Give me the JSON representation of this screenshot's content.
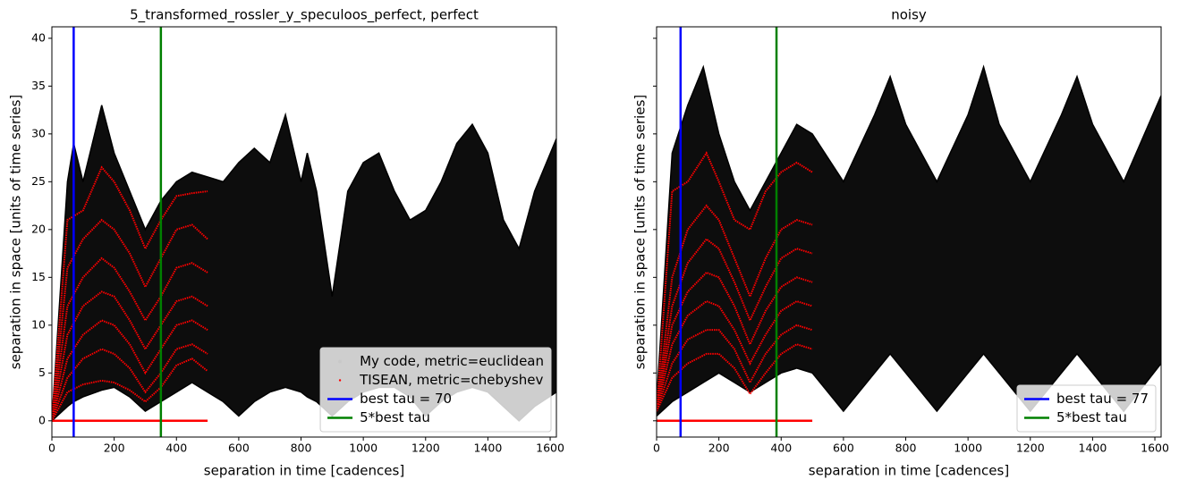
{
  "chart_data": [
    {
      "type": "density",
      "title": "5_transformed_rossler_y_speculoos_perfect, perfect",
      "xlabel": "separation in time [cadences]",
      "ylabel": "separation in space [units of time series]",
      "xlim": [
        0,
        1620
      ],
      "ylim": [
        -1.7,
        41.2
      ],
      "xticks": [
        0,
        200,
        400,
        600,
        800,
        1000,
        1200,
        1400,
        1600
      ],
      "yticks": [
        0,
        5,
        10,
        15,
        20,
        25,
        30,
        35,
        40
      ],
      "yticklabels": true,
      "legend": "lower right",
      "cloud": {
        "name": "My code, metric=euclidean",
        "color": "#000000",
        "x": [
          0,
          50,
          70,
          100,
          160,
          200,
          250,
          300,
          350,
          400,
          450,
          500,
          550,
          600,
          650,
          700,
          750,
          800,
          820,
          850,
          900,
          950,
          1000,
          1050,
          1100,
          1150,
          1200,
          1250,
          1300,
          1350,
          1400,
          1450,
          1500,
          1550,
          1620
        ],
        "upper": [
          0,
          25,
          29,
          25,
          33,
          28,
          24,
          20,
          23,
          25,
          26,
          25.5,
          25,
          27,
          28.5,
          27,
          32,
          25,
          28,
          24,
          13,
          24,
          27,
          28,
          24,
          21,
          22,
          25,
          29,
          31,
          28,
          21,
          18,
          24,
          29.5
        ],
        "lower": [
          0,
          1.5,
          2,
          2.5,
          3.2,
          3.5,
          2.5,
          1,
          2,
          3,
          4,
          3,
          2,
          0.5,
          2,
          3,
          3.5,
          3,
          2.5,
          2,
          0.5,
          2,
          3,
          3.5,
          3.5,
          2.5,
          0.5,
          2,
          3,
          3.5,
          3,
          1.5,
          0,
          1.5,
          3
        ]
      },
      "curves": {
        "name": "TISEAN, metric=chebyshev",
        "color": "#ff0000",
        "x": [
          0,
          50,
          100,
          160,
          200,
          250,
          300,
          350,
          400,
          450,
          500
        ],
        "lines": [
          [
            0,
            21,
            22,
            26.5,
            25,
            22,
            18,
            21,
            23.5,
            23.8,
            24
          ],
          [
            0,
            16,
            19,
            21,
            20,
            17.5,
            14,
            17,
            20,
            20.5,
            19
          ],
          [
            0,
            12,
            15,
            17,
            16,
            13.5,
            10.5,
            13,
            16,
            16.5,
            15.5
          ],
          [
            0,
            9,
            12,
            13.5,
            13,
            10.5,
            7.5,
            10,
            12.5,
            13,
            12
          ],
          [
            0,
            6.5,
            9,
            10.5,
            10,
            8,
            5,
            7.5,
            10,
            10.5,
            9.5
          ],
          [
            0,
            4.5,
            6.5,
            7.5,
            7,
            5.5,
            3,
            5,
            7.5,
            8,
            7
          ],
          [
            0,
            3,
            3.8,
            4.2,
            4,
            3.2,
            2,
            3.5,
            5.8,
            6.5,
            5.2
          ]
        ]
      },
      "vlines": [
        {
          "name": "best tau = 70",
          "color": "#0000ff",
          "x": 70
        },
        {
          "name": "5*best tau",
          "color": "#008000",
          "x": 350
        }
      ],
      "baseline": {
        "color": "#ff0000",
        "x": [
          0,
          500
        ],
        "values": [
          0,
          0
        ]
      }
    },
    {
      "type": "density",
      "title": "noisy",
      "xlabel": "separation in time [cadences]",
      "ylabel": "separation in space [units of time series]",
      "xlim": [
        0,
        1620
      ],
      "ylim": [
        -1.7,
        41.2
      ],
      "xticks": [
        0,
        200,
        400,
        600,
        800,
        1000,
        1200,
        1400,
        1600
      ],
      "yticks": [
        0,
        5,
        10,
        15,
        20,
        25,
        30,
        35,
        40
      ],
      "yticklabels": false,
      "legend": "lower right",
      "cloud": {
        "color": "#000000",
        "x": [
          0,
          50,
          100,
          150,
          200,
          250,
          300,
          350,
          400,
          450,
          500,
          600,
          700,
          750,
          800,
          900,
          1000,
          1050,
          1100,
          1200,
          1300,
          1350,
          1400,
          1500,
          1620
        ],
        "upper": [
          2,
          28,
          33,
          37,
          30,
          25,
          22,
          25,
          28,
          31,
          30,
          25,
          32,
          36,
          31,
          25,
          32,
          37,
          31,
          25,
          32,
          36,
          31,
          25,
          34
        ],
        "lower": [
          0.5,
          2,
          3,
          4,
          5,
          4,
          3,
          4,
          5,
          5.5,
          5,
          1,
          5,
          7,
          5,
          1,
          5,
          7,
          5,
          1,
          5,
          7,
          5,
          1,
          6
        ]
      },
      "curves": {
        "color": "#ff0000",
        "x": [
          0,
          50,
          100,
          160,
          200,
          250,
          300,
          350,
          400,
          450,
          500
        ],
        "lines": [
          [
            1,
            24,
            25,
            28,
            25,
            21,
            20,
            24,
            26,
            27,
            26
          ],
          [
            1,
            15,
            20,
            22.5,
            21,
            17,
            13,
            17,
            20,
            21,
            20.5
          ],
          [
            1,
            12,
            16.5,
            19,
            18,
            14.5,
            10.5,
            14,
            17,
            18,
            17.5
          ],
          [
            1,
            10,
            13.5,
            15.5,
            15,
            12,
            8,
            11.5,
            14,
            15,
            14.5
          ],
          [
            1,
            8,
            11,
            12.5,
            12,
            9.5,
            6,
            9,
            11.5,
            12.5,
            12
          ],
          [
            1,
            6,
            8.5,
            9.5,
            9.5,
            7.5,
            4,
            7,
            9,
            10,
            9.5
          ],
          [
            1,
            4.5,
            6,
            7,
            7,
            5.5,
            2.8,
            5,
            7,
            8,
            7.5
          ]
        ]
      },
      "vlines": [
        {
          "name": "best tau = 77",
          "color": "#0000ff",
          "x": 77
        },
        {
          "name": "5*best tau",
          "color": "#008000",
          "x": 385
        }
      ],
      "baseline": {
        "color": "#ff0000",
        "x": [
          0,
          500
        ],
        "values": [
          0,
          0
        ]
      }
    }
  ]
}
